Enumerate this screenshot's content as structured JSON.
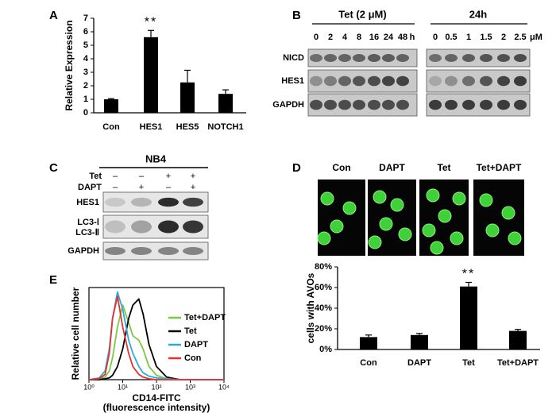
{
  "panel_labels": [
    "A",
    "B",
    "C",
    "D",
    "E"
  ],
  "chart_data": [
    {
      "type": "bar",
      "ylabel": "Relative Expression",
      "categories": [
        "Con",
        "HES1",
        "HES5",
        "NOTCH1"
      ],
      "values": [
        1,
        5.6,
        2.25,
        1.4
      ],
      "errors": [
        0.05,
        0.5,
        0.9,
        0.3
      ],
      "color": "#000000",
      "ylim": [
        0,
        7
      ],
      "yticks": [
        0,
        1,
        2,
        3,
        4,
        5,
        6,
        7
      ],
      "annotations": [
        {
          "category": "HES1",
          "text": "**"
        }
      ]
    },
    {
      "type": "bar",
      "ylabel": "cells with AVOs",
      "categories": [
        "Con",
        "DAPT",
        "Tet",
        "Tet+DAPT"
      ],
      "values": [
        12,
        14,
        61,
        18
      ],
      "errors": [
        2,
        1.5,
        4,
        1.5
      ],
      "color": "#000000",
      "ylim": [
        0,
        80
      ],
      "yticks": [
        {
          "value": 0,
          "label": "0%"
        },
        {
          "value": 20,
          "label": "20%"
        },
        {
          "value": 40,
          "label": "40%"
        },
        {
          "value": 60,
          "label": "60%"
        },
        {
          "value": 80,
          "label": "80%"
        }
      ],
      "annotations": [
        {
          "category": "Tet",
          "text": "**"
        }
      ]
    },
    {
      "type": "line",
      "xlabel": [
        "CD14-FITC",
        "(fluorescence intensity)"
      ],
      "ylabel": "Relative cell number",
      "log_x": true,
      "xlim": [
        1,
        10000
      ],
      "xticks": [
        {
          "value": 1,
          "label": "10⁰"
        },
        {
          "value": 10,
          "label": "10¹"
        },
        {
          "value": 100,
          "label": "10²"
        },
        {
          "value": 1000,
          "label": "10³"
        },
        {
          "value": 10000,
          "label": "10⁴"
        }
      ],
      "ylim": [
        0,
        105
      ],
      "x": [
        1,
        2,
        3,
        4,
        5,
        7,
        10,
        15,
        20,
        30,
        40,
        60,
        100,
        200,
        500,
        1000,
        10000
      ],
      "series": [
        {
          "name": "Tet+DAPT",
          "color": "#7ac943",
          "values": [
            0,
            1,
            3,
            10,
            25,
            60,
            85,
            65,
            50,
            45,
            35,
            15,
            5,
            1,
            0,
            0,
            0
          ]
        },
        {
          "name": "Tet",
          "color": "#000000",
          "values": [
            0,
            0,
            1,
            2,
            5,
            15,
            35,
            70,
            85,
            92,
            75,
            40,
            15,
            3,
            0,
            0,
            0
          ]
        },
        {
          "name": "DAPT",
          "color": "#29abe2",
          "values": [
            0,
            2,
            10,
            35,
            70,
            100,
            80,
            45,
            30,
            15,
            8,
            4,
            2,
            1,
            0,
            0,
            0
          ]
        },
        {
          "name": "Con",
          "color": "#e8312f",
          "values": [
            0,
            1,
            6,
            30,
            70,
            95,
            60,
            30,
            15,
            6,
            3,
            1,
            0,
            0,
            0,
            0,
            0
          ]
        }
      ]
    }
  ],
  "blot_b": {
    "groups": [
      {
        "title": "Tet (2 μM)",
        "lanes": [
          "0",
          "2",
          "4",
          "8",
          "16",
          "24",
          "48"
        ],
        "unit": "h"
      },
      {
        "title": "24h",
        "lanes": [
          "0",
          "0.5",
          "1",
          "1.5",
          "2",
          "2.5"
        ],
        "unit": "μM"
      }
    ],
    "rows": [
      "NICD",
      "HES1",
      "GAPDH"
    ]
  },
  "blot_c": {
    "title": "NB4",
    "treatments": [
      {
        "name": "Tet",
        "signs": [
          "–",
          "–",
          "+",
          "+"
        ]
      },
      {
        "name": "DAPT",
        "signs": [
          "–",
          "+",
          "–",
          "+"
        ]
      }
    ],
    "rows": [
      "HES1",
      "LC3-Ⅰ",
      "LC3-Ⅱ",
      "GAPDH"
    ]
  },
  "images_d": {
    "labels": [
      "Con",
      "DAPT",
      "Tet",
      "Tet+DAPT"
    ]
  }
}
